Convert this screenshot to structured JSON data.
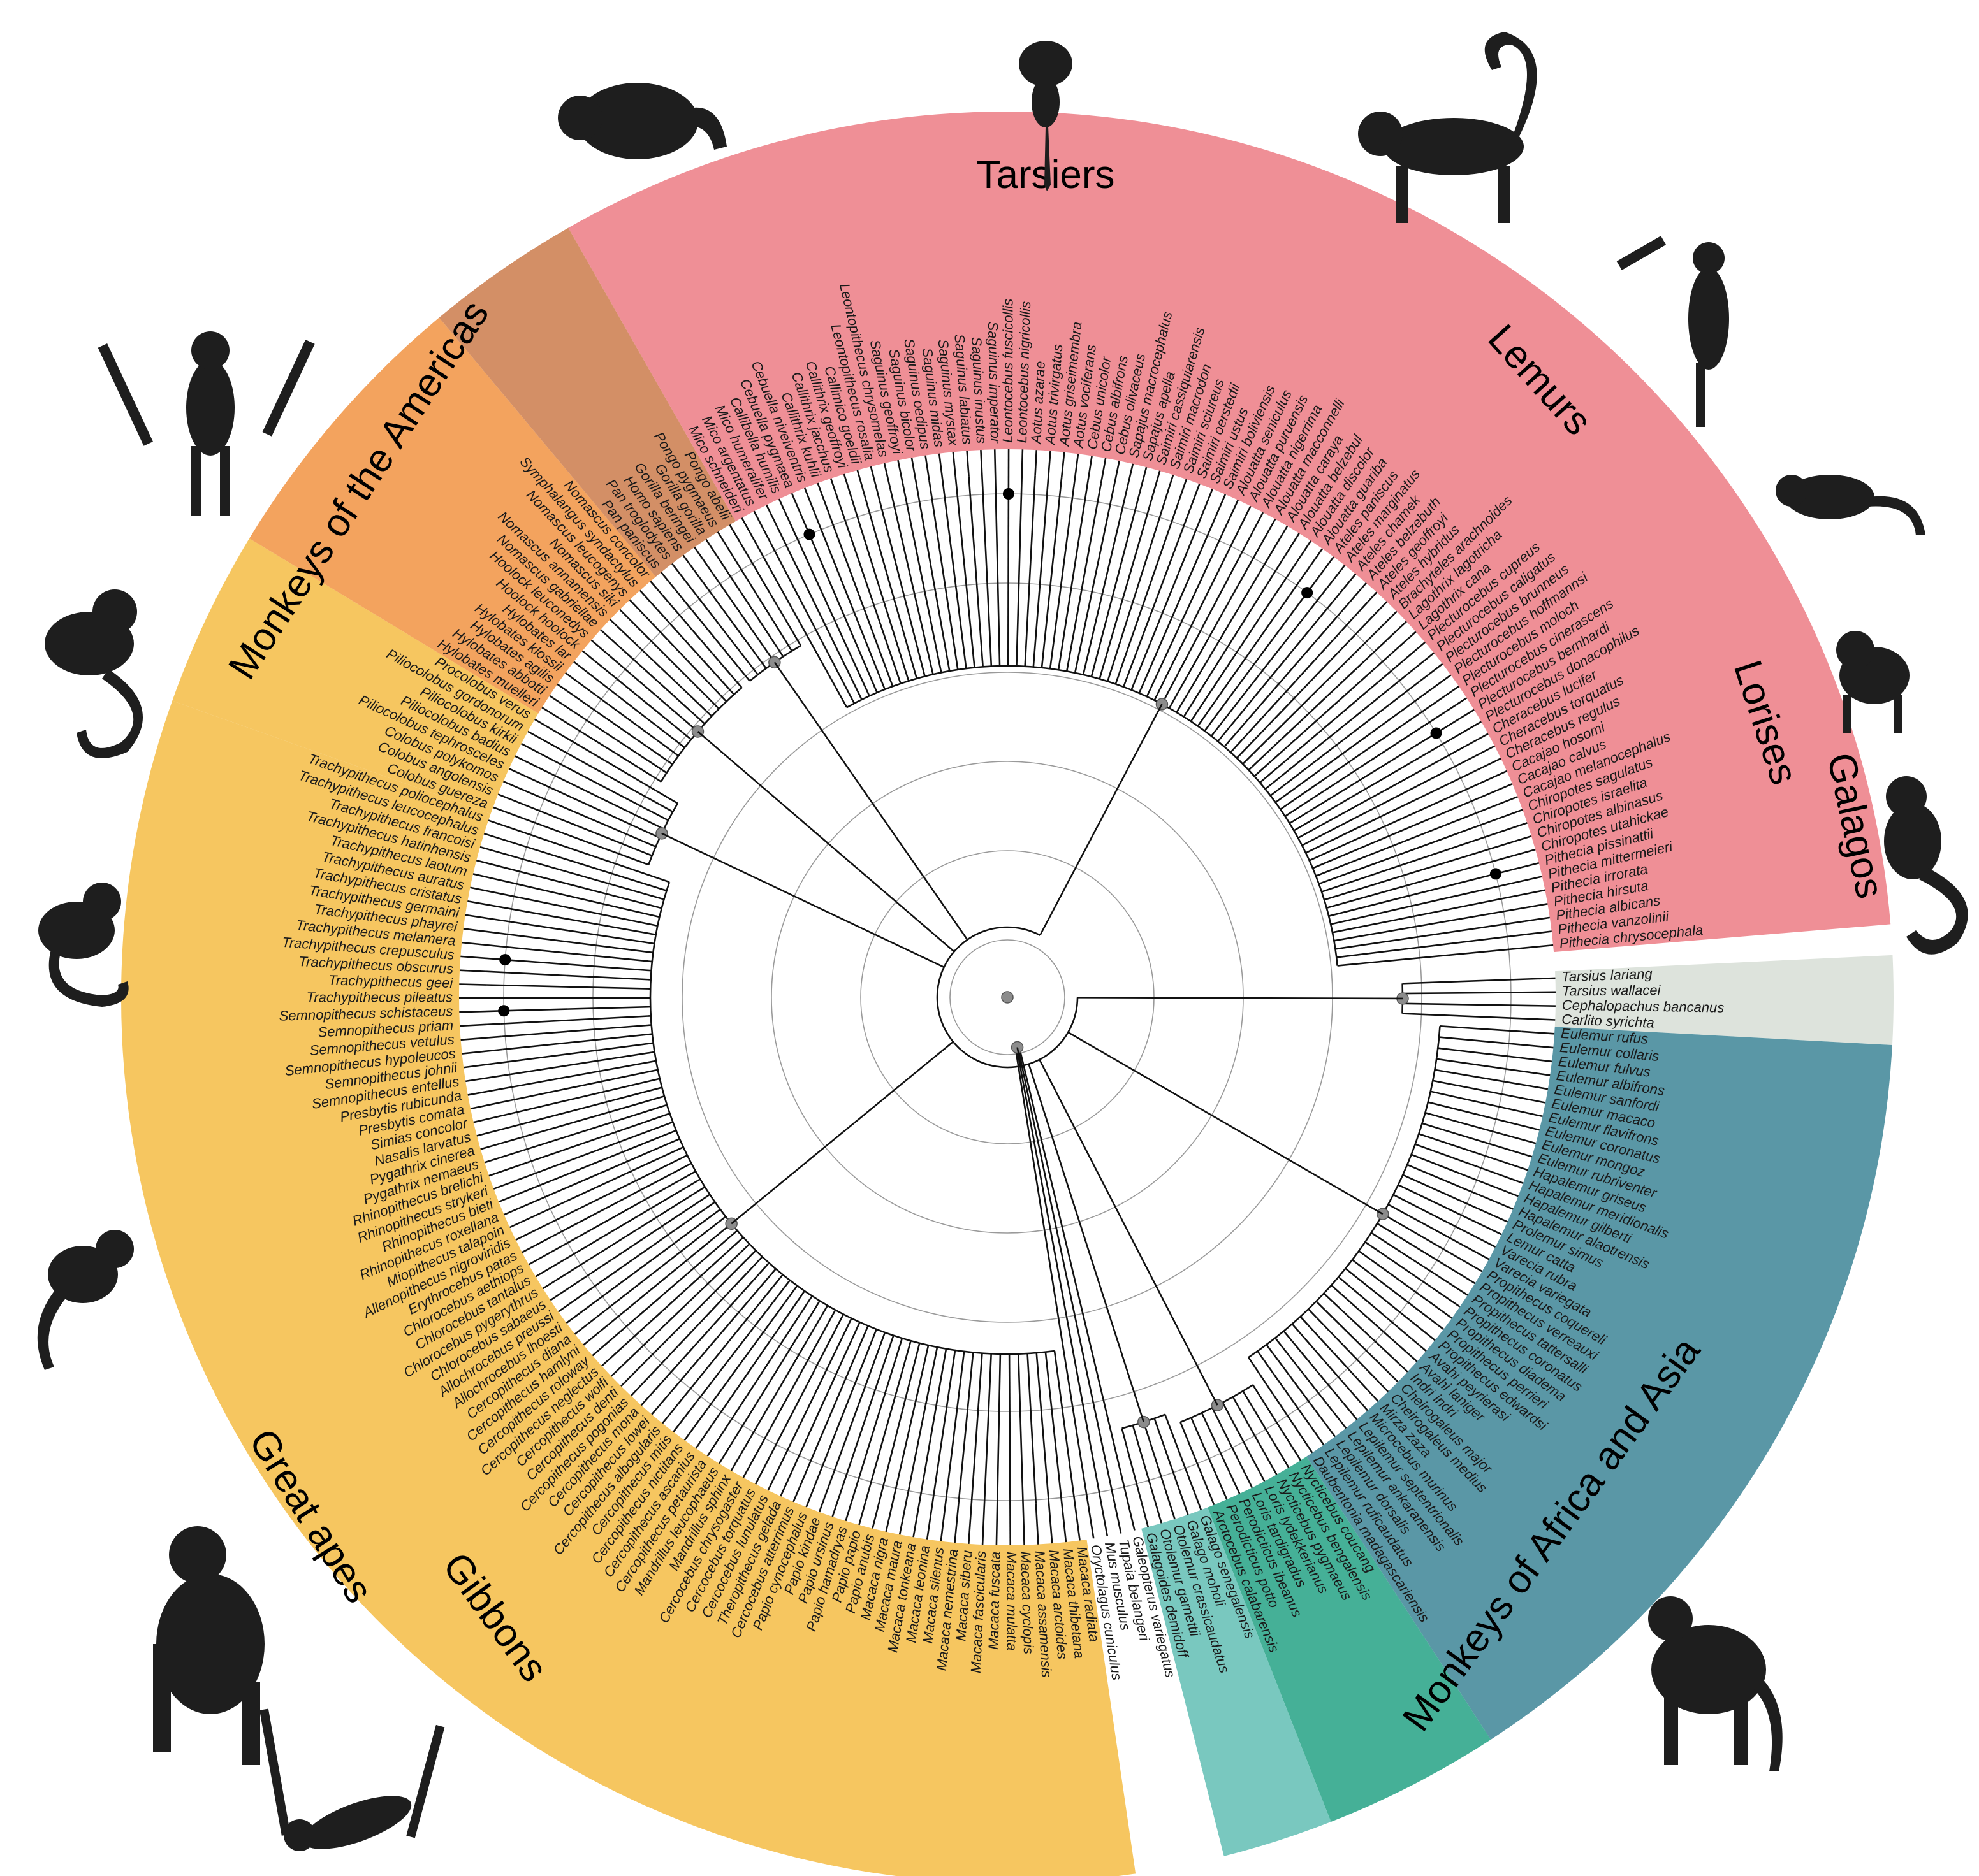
{
  "colors": {
    "Tarsiers": "#dde3dc",
    "Lemurs": "#5a97a6",
    "Lemurs light": "#77b5c6",
    "Lorises": "#45b097",
    "Galagos": "#79c8bf",
    "Monkeys of the Americas": "#ef8f96",
    "Monkeys of the Americas light": "#f3b0b5",
    "Monkeys of the Americas dark": "#ee6a6f",
    "Great apes": "#d38f66",
    "Gibbons": "#f3a35e",
    "Monkeys of Africa and Asia": "#f6c660"
  },
  "icons": [
    "tarsier-silhouette",
    "ring-tailed-lemur-silhouette",
    "sifaka-silhouette",
    "mouse-lemur-silhouette",
    "loris-silhouette",
    "galago-silhouette",
    "macaque-silhouette",
    "gibbon-silhouette",
    "chimpanzee-silhouette",
    "marmoset-silhouette",
    "capuchin-silhouette",
    "tamarin-silhouette",
    "spider-monkey-silhouette",
    "saki-silhouette"
  ],
  "groups": [
    {
      "key": "tarsiers",
      "name": "Tarsiers",
      "color": "#dde3dc",
      "species": [
        "Tarsius lariang",
        "Tarsius wallacei",
        "Cephalopachus bancanus",
        "Carlito syrichta"
      ]
    },
    {
      "key": "lemurs",
      "name": "Lemurs",
      "color": "#5a97a6",
      "species": [
        "Eulemur rufus",
        "Eulemur collaris",
        "Eulemur fulvus",
        "Eulemur albifrons",
        "Eulemur sanfordi",
        "Eulemur macaco",
        "Eulemur flavifrons",
        "Eulemur coronatus",
        "Eulemur mongoz",
        "Eulemur rubriventer",
        "Hapalemur griseus",
        "Hapalemur meridionalis",
        "Hapalemur gilberti",
        "Hapalemur alaotrensis",
        "Prolemur simus",
        "Lemur catta",
        "Varecia rubra",
        "Varecia variegata",
        "Propithecus coquereli",
        "Propithecus verreauxi",
        "Propithecus tattersalli",
        "Propithecus coronatus",
        "Propithecus diadema",
        "Propithecus perrieri",
        "Propithecus edwardsi",
        "Avahi peyrierasi",
        "Avahi laniger",
        "Indri indri",
        "Cheirogaleus major",
        "Cheirogaleus medius",
        "Mirza zaza",
        "Microcebus murinus",
        "Lepilemur septentrionalis",
        "Lepilemur ankaranensis",
        "Lepilemur dorsalis",
        "Lepilemur ruficaudatus",
        "Daubentonia madagascariensis"
      ]
    },
    {
      "key": "lorises",
      "name": "Lorises",
      "color": "#45b097",
      "species": [
        "Nycticebus coucang",
        "Nycticebus bengalensis",
        "Nycticebus pygmaeus",
        "Loris lydekkerianus",
        "Loris tardigradus",
        "Perodicticus ibeanus",
        "Perodicticus potto",
        "Arctocebus calabarensis"
      ]
    },
    {
      "key": "galagos",
      "name": "Galagos",
      "color": "#79c8bf",
      "species": [
        "Galago senegalensis",
        "Galago moholi",
        "Otolemur crassicaudatus",
        "Otolemur garnettii",
        "Galagoides demidoff"
      ]
    },
    {
      "key": "outgroup",
      "name": "",
      "color": "#ffffff",
      "species": [
        "Galeopterus variegatus",
        "Tupaia belangeri",
        "Mus musculus",
        "Oryctolagus cuniculus"
      ]
    },
    {
      "key": "afroasia",
      "name": "Monkeys of Africa and Asia",
      "color": "#f6c660",
      "species": [
        "Macaca radiata",
        "Macaca thibetana",
        "Macaca arctoides",
        "Macaca assamensis",
        "Macaca cyclopis",
        "Macaca mulatta",
        "Macaca fuscata",
        "Macaca fascicularis",
        "Macaca siberu",
        "Macaca nemestrina",
        "Macaca silenus",
        "Macaca leonina",
        "Macaca tonkeana",
        "Macaca maura",
        "Macaca nigra",
        "Papio anubis",
        "Papio papio",
        "Papio hamadryas",
        "Papio ursinus",
        "Papio kindae",
        "Papio cynocephalus",
        "Cercocebus atterrimus",
        "Theropithecus gelada",
        "Cercocebus lunulatus",
        "Cercocebus torquatus",
        "Cercocebus chrysogaster",
        "Mandrillus sphinx",
        "Mandrillus leucophaeus",
        "Cercopithecus petaurista",
        "Cercopithecus ascanius",
        "Cercopithecus nictitans",
        "Cercopithecus mitis",
        "Cercopithecus albogularis",
        "Cercopithecus lowei",
        "Cercopithecus mona",
        "Cercopithecus pogonias",
        "Cercopithecus denti",
        "Cercopithecus wolfi",
        "Cercopithecus neglectus",
        "Cercopithecus roloway",
        "Cercopithecus hamlyni",
        "Cercopithecus diana",
        "Allochrocebus lhoesti",
        "Allochrocebus preussi",
        "Chlorocebus sabaeus",
        "Chlorocebus pygerythrus",
        "Chlorocebus tantalus",
        "Chlorocebus aethiops",
        "Erythrocebus patas",
        "Allenopithecus nigroviridis",
        "Miopithecus talapoin",
        "Rhinopithecus roxellana",
        "Rhinopithecus bieti",
        "Rhinopithecus strykeri",
        "Rhinopithecus brelichi",
        "Pygathrix nemaeus",
        "Pygathrix cinerea",
        "Nasalis larvatus",
        "Simias concolor",
        "Presbytis comata",
        "Presbytis rubicunda",
        "Semnopithecus entellus",
        "Semnopithecus johnii",
        "Semnopithecus hypoleucos",
        "Semnopithecus vetulus",
        "Semnopithecus priam",
        "Semnopithecus schistaceus",
        "Trachypithecus pileatus",
        "Trachypithecus geei",
        "Trachypithecus obscurus",
        "Trachypithecus crepusculus",
        "Trachypithecus melamera",
        "Trachypithecus phayrei",
        "Trachypithecus germaini",
        "Trachypithecus cristatus",
        "Trachypithecus auratus",
        "Trachypithecus laotum",
        "Trachypithecus hatinhensis",
        "Trachypithecus francoisi",
        "Trachypithecus leucocephalus",
        "Trachypithecus poliocephalus"
      ]
    },
    {
      "key": "colobines",
      "name": "",
      "color": "#f6c660",
      "species": [
        "Colobus guereza",
        "Colobus angolensis",
        "Colobus polykomos",
        "Piliocolobus tephrosceles",
        "Piliocolobus badius",
        "Piliocolobus kirkii",
        "Piliocolobus gordonorum",
        "Procolobus verus"
      ]
    },
    {
      "key": "gibbons",
      "name": "Gibbons",
      "color": "#f3a35e",
      "species": [
        "Hylobates muelleri",
        "Hylobates abbotti",
        "Hylobates agilis",
        "Hylobates klossii",
        "Hylobates lar",
        "Hoolock hoolock",
        "Hoolock leuconedys",
        "Nomascus gabriellae",
        "Nomascus annamensis",
        "Nomascus siki",
        "Nomascus leucogenys",
        "Symphalangus syndactylus",
        "Nomascus concolor"
      ]
    },
    {
      "key": "greatapes",
      "name": "Great apes",
      "color": "#d38f66",
      "species": [
        "Pan paniscus",
        "Pan troglodytes",
        "Homo sapiens",
        "Gorilla beringei",
        "Gorilla gorilla",
        "Pongo pygmaeus",
        "Pongo abelii"
      ]
    },
    {
      "key": "americas",
      "name": "Monkeys of the Americas",
      "color": "#ef8f96",
      "species": [
        "Mico schneideri",
        "Mico argentatus",
        "Mico humeralifer",
        "Callibella humilis",
        "Cebuella pygmaea",
        "Cebuella niveiventris",
        "Callithrix kuhlii",
        "Callithrix jacchus",
        "Callithrix geoffroyi",
        "Callimico goeldii",
        "Leontopithecus rosalia",
        "Leontopithecus chrysomelas",
        "Saguinus geoffroyi",
        "Saguinus bicolor",
        "Saguinus oedipus",
        "Saguinus midas",
        "Saguinus mystax",
        "Saguinus labiatus",
        "Saguinus inustus",
        "Saguinus imperator",
        "Leontocebus fuscicollis",
        "Leontocebus nigricollis",
        "Aotus azarae",
        "Aotus trivirgatus",
        "Aotus griseimembra",
        "Aotus vociferans",
        "Cebus unicolor",
        "Cebus albifrons",
        "Cebus olivaceus",
        "Sapajus macrocephalus",
        "Sapajus apella",
        "Saimiri cassiquiarensis",
        "Saimiri macrodon",
        "Saimiri sciureus",
        "Saimiri oerstedii",
        "Saimiri ustus",
        "Saimiri boliviensis",
        "Alouatta seniculus",
        "Alouatta puruensis",
        "Alouatta nigerrima",
        "Alouatta macconnelli",
        "Alouatta caraya",
        "Alouatta belzebul",
        "Alouatta discolor",
        "Alouatta guariba",
        "Ateles paniscus",
        "Ateles marginatus",
        "Ateles chamek",
        "Ateles belzebuth",
        "Ateles geoffroyi",
        "Ateles hybridus",
        "Brachyteles arachnoides",
        "Lagothrix lagotricha",
        "Lagothrix cana",
        "Plecturocebus cupreus",
        "Plecturocebus caligatus",
        "Plecturocebus brunneus",
        "Plecturocebus hoffmannsi",
        "Plecturocebus moloch",
        "Plecturocebus cinerascens",
        "Plecturocebus bernhardi",
        "Plecturocebus donacophilus",
        "Cheracebus lucifer",
        "Cheracebus torquatus",
        "Cheracebus regulus",
        "Cacajao hosomi",
        "Cacajao calvus",
        "Cacajao melanocephalus",
        "Chiropotes sagulatus",
        "Chiropotes israelita",
        "Chiropotes albinasus",
        "Chiropotes utahickae",
        "Pithecia pissinattii",
        "Pithecia mittermeieri",
        "Pithecia irrorata",
        "Pithecia hirsuta",
        "Pithecia albicans",
        "Pithecia vanzolinii",
        "Pithecia chrysocephala"
      ]
    }
  ]
}
